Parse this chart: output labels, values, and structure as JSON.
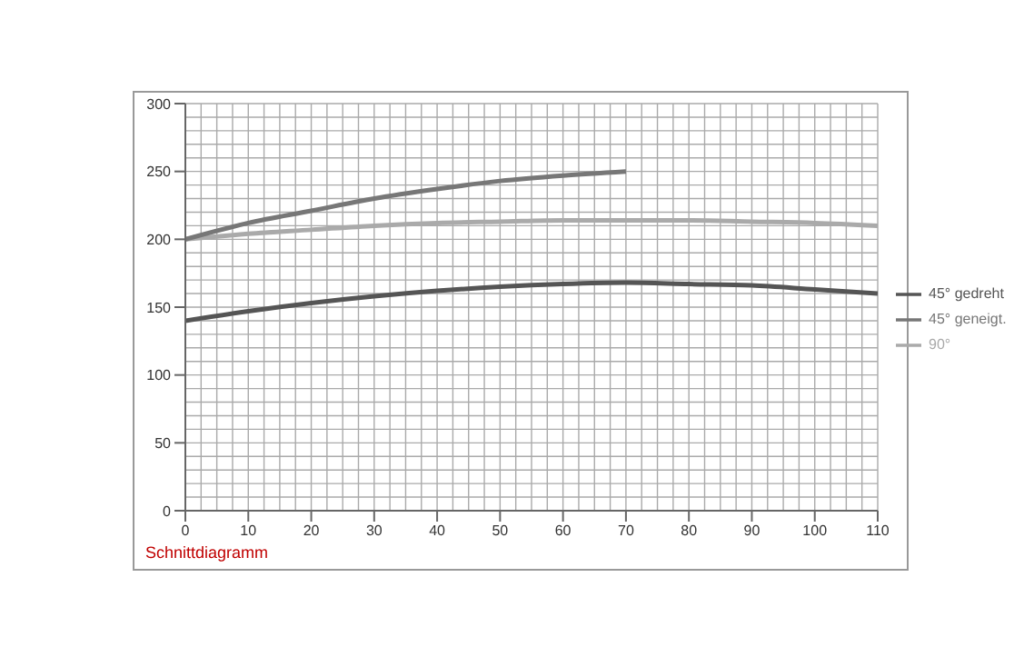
{
  "chart_data": {
    "type": "line",
    "x": [
      0,
      10,
      20,
      30,
      40,
      50,
      60,
      70,
      80,
      90,
      100,
      110
    ],
    "series": [
      {
        "name": "45° gedreht",
        "color": "#555555",
        "values": [
          140,
          147,
          153,
          158,
          162,
          165,
          167,
          168,
          167,
          166,
          163,
          160
        ]
      },
      {
        "name": "90°",
        "color": "#aaaaaa",
        "values": [
          200,
          204,
          207,
          210,
          212,
          213,
          214,
          214,
          214,
          213,
          212,
          210
        ]
      },
      {
        "name": "45° geneigt.",
        "color": "#777777",
        "x": [
          0,
          10,
          20,
          30,
          40,
          50,
          60,
          70
        ],
        "values": [
          200,
          212,
          221,
          230,
          237,
          243,
          247,
          250
        ]
      }
    ],
    "xlim": [
      0,
      110
    ],
    "xticks": [
      0,
      10,
      20,
      30,
      40,
      50,
      60,
      70,
      80,
      90,
      100,
      110
    ],
    "ylim": [
      0,
      300
    ],
    "yticks": [
      0,
      50,
      100,
      150,
      200,
      250,
      300
    ],
    "grid": true,
    "legend": "right",
    "marker": "none",
    "line_style": "solid",
    "annotations": [
      "Schnittdiagramm"
    ]
  }
}
